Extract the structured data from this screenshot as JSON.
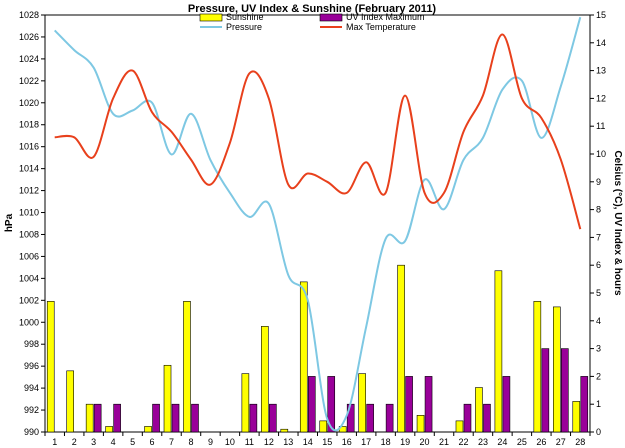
{
  "chart_data": {
    "type": "bar+line",
    "title": "Pressure, UV Index & Sunshine (February 2011)",
    "ylabel_left": "hPa",
    "ylabel_right": "Celsius (°C), UV Index & hours",
    "ylim_left": [
      990,
      1028
    ],
    "ylim_right": [
      0,
      15
    ],
    "yticks_left": [
      "990",
      "992",
      "994",
      "996",
      "998",
      "1000",
      "1002",
      "1004",
      "1006",
      "1008",
      "1010",
      "1012",
      "1014",
      "1016",
      "1018",
      "1020",
      "1022",
      "1024",
      "1026",
      "1028"
    ],
    "yticks_right": [
      "0",
      "1",
      "2",
      "3",
      "4",
      "5",
      "6",
      "7",
      "8",
      "9",
      "10",
      "11",
      "12",
      "13",
      "14",
      "15"
    ],
    "categories": [
      "1",
      "2",
      "3",
      "4",
      "5",
      "6",
      "7",
      "8",
      "9",
      "10",
      "11",
      "12",
      "13",
      "14",
      "15",
      "16",
      "17",
      "18",
      "19",
      "20",
      "21",
      "22",
      "23",
      "24",
      "25",
      "26",
      "27",
      "28"
    ],
    "grid": false,
    "legend_position": "top-center",
    "series": [
      {
        "name": "Sunshine",
        "kind": "bar",
        "axis": "right",
        "color": "#ffff00",
        "values": [
          4.7,
          2.2,
          1.0,
          0.2,
          0.0,
          0.2,
          2.4,
          4.7,
          0.0,
          0.0,
          2.1,
          3.8,
          0.1,
          5.4,
          0.4,
          0.2,
          2.1,
          0.0,
          6.0,
          0.6,
          0.0,
          0.4,
          1.6,
          5.8,
          0.0,
          4.7,
          4.5,
          1.1
        ]
      },
      {
        "name": "UV Index Maximum",
        "kind": "bar",
        "axis": "right",
        "color": "#990099",
        "values": [
          0,
          0,
          1,
          1,
          0,
          1,
          1,
          1,
          0,
          0,
          1,
          1,
          0,
          2,
          2,
          1,
          1,
          1,
          2,
          2,
          0,
          1,
          1,
          2,
          0,
          3,
          3,
          2
        ]
      },
      {
        "name": "Pressure",
        "kind": "line",
        "axis": "left",
        "color": "#7ec8e3",
        "values": [
          1026.6,
          1024.8,
          1023.2,
          1019.0,
          1019.3,
          1020.0,
          1015.3,
          1019.0,
          1014.8,
          1011.8,
          1009.6,
          1010.8,
          1004.3,
          1002.0,
          991.2,
          991.5,
          999.6,
          1007.6,
          1007.4,
          1013.0,
          1010.3,
          1014.8,
          1016.8,
          1021.2,
          1022.0,
          1016.8,
          1021.5,
          1027.8
        ]
      },
      {
        "name": "Max Temperature",
        "kind": "line",
        "axis": "right",
        "color": "#e8401c",
        "values": [
          10.6,
          10.6,
          9.9,
          12.0,
          13.0,
          11.5,
          10.8,
          9.8,
          8.9,
          10.4,
          12.9,
          12.0,
          8.9,
          9.3,
          9.0,
          8.6,
          9.7,
          8.6,
          12.1,
          8.6,
          8.6,
          10.8,
          12.1,
          14.3,
          12.0,
          11.3,
          9.8,
          7.3
        ]
      }
    ]
  }
}
